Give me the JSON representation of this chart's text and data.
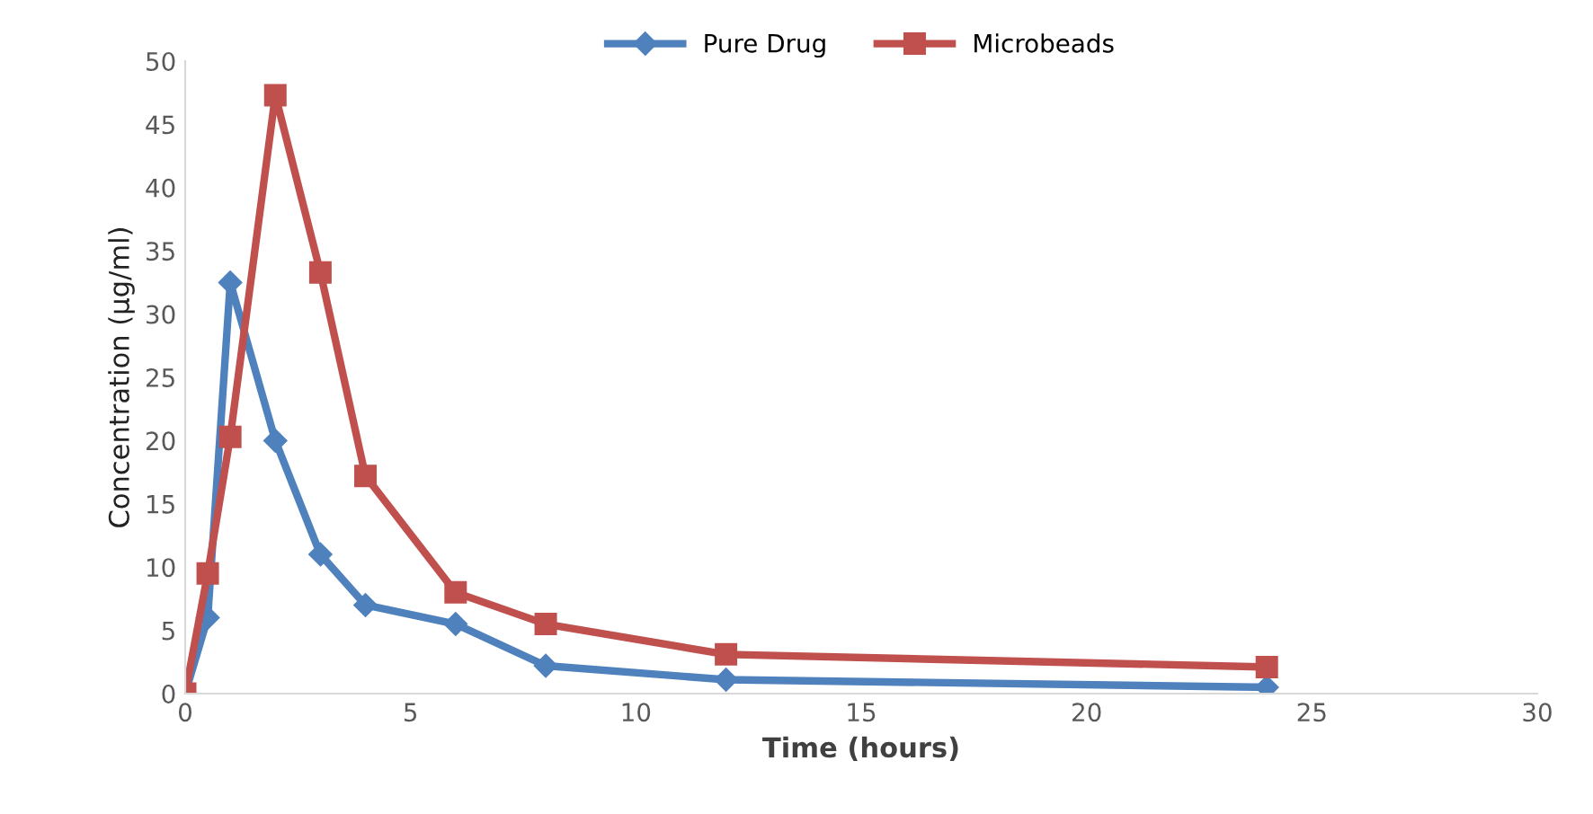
{
  "chart_data": {
    "type": "line",
    "xlabel": "Time (hours)",
    "ylabel": "Concentration (µg/ml)",
    "x": [
      0,
      0.5,
      1,
      2,
      3,
      4,
      6,
      8,
      12,
      24
    ],
    "series": [
      {
        "name": "Pure Drug",
        "color": "#4f81bd",
        "marker": "diamond",
        "values": [
          0,
          6,
          32.5,
          20,
          11,
          7,
          5.5,
          2.2,
          1.1,
          0.5
        ]
      },
      {
        "name": "Microbeads",
        "color": "#c0504d",
        "marker": "square",
        "values": [
          0,
          9.5,
          20.3,
          47.3,
          33.3,
          17.2,
          8,
          5.5,
          3.1,
          2.1
        ]
      }
    ],
    "xlim": [
      0,
      30
    ],
    "xticks": [
      0,
      5,
      10,
      15,
      20,
      25,
      30
    ],
    "ylim": [
      0,
      50
    ],
    "yticks": [
      0,
      5,
      10,
      15,
      20,
      25,
      30,
      35,
      40,
      45,
      50
    ],
    "grid": false,
    "legend": "top",
    "line_style": "solid"
  }
}
